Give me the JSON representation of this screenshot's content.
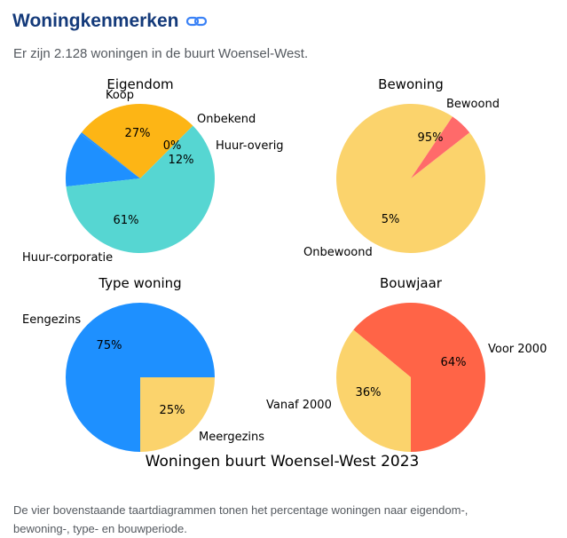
{
  "header": {
    "title": "Woningkenmerken",
    "link_icon": "link-icon"
  },
  "subtitle": "Er zijn 2.128 woningen in de buurt Woensel-West.",
  "footer": {
    "line1": "De vier bovenstaande taartdiagrammen tonen het percentage woningen naar eigendom-,",
    "line2": "bewoning-, type- en bouwperiode."
  },
  "colors": {
    "title": "#143a7a",
    "text": "#555a60",
    "orange": "#fdb515",
    "blue": "#1e90ff",
    "teal": "#56d6d2",
    "yellow": "#fbd36c",
    "red": "#ff6a6a",
    "tomato": "#ff6447"
  },
  "chart_data": {
    "type": "pie",
    "suptitle": "Woningen buurt Woensel-West 2023",
    "charts": [
      {
        "title": "Eigendom",
        "slices": [
          {
            "label": "Koop",
            "value": 27,
            "pct_label": "27%",
            "color": "#fdb515"
          },
          {
            "label": "Onbekend",
            "value": 0.4,
            "pct_label": "0%",
            "color": "#1e90ff"
          },
          {
            "label": "Huur-overig",
            "value": 12,
            "pct_label": "12%",
            "color": "#1e90ff"
          },
          {
            "label": "Huur-corporatie",
            "value": 61,
            "pct_label": "61%",
            "color": "#56d6d2"
          }
        ]
      },
      {
        "title": "Bewoning",
        "slices": [
          {
            "label": "Bewoond",
            "value": 95,
            "pct_label": "95%",
            "color": "#fbd36c"
          },
          {
            "label": "Onbewoond",
            "value": 5,
            "pct_label": "5%",
            "color": "#ff6a6a"
          }
        ]
      },
      {
        "title": "Type woning",
        "slices": [
          {
            "label": "Eengezins",
            "value": 75,
            "pct_label": "75%",
            "color": "#1e90ff"
          },
          {
            "label": "Meergezins",
            "value": 25,
            "pct_label": "25%",
            "color": "#fbd36c"
          }
        ]
      },
      {
        "title": "Bouwjaar",
        "slices": [
          {
            "label": "Voor 2000",
            "value": 64,
            "pct_label": "64%",
            "color": "#ff6447"
          },
          {
            "label": "Vanaf 2000",
            "value": 36,
            "pct_label": "36%",
            "color": "#fbd36c"
          }
        ]
      }
    ]
  }
}
